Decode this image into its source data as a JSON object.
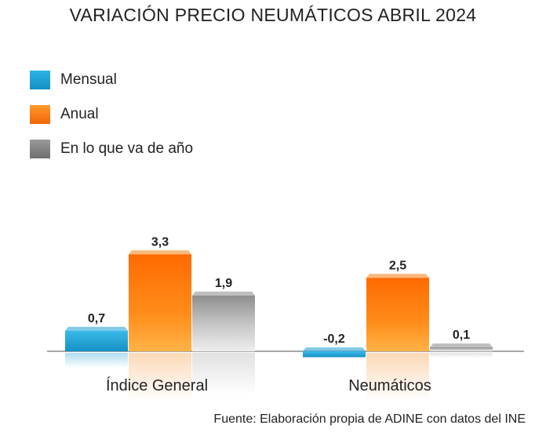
{
  "chart_data": {
    "type": "bar",
    "title": "VARIACIÓN PRECIO NEUMÁTICOS ABRIL 2024",
    "categories": [
      "Índice General",
      "Neumáticos"
    ],
    "series": [
      {
        "name": "Mensual",
        "values": [
          0.7,
          -0.2
        ],
        "labels": [
          "0,7",
          "-0,2"
        ],
        "color": "#1a9fd3"
      },
      {
        "name": "Anual",
        "values": [
          3.3,
          2.5
        ],
        "labels": [
          "3,3",
          "2,5"
        ],
        "color": "#f57f12"
      },
      {
        "name": "En lo que va de año",
        "values": [
          1.9,
          0.1
        ],
        "labels": [
          "1,9",
          "0,1"
        ],
        "color": "#8a8a8a"
      }
    ],
    "legend_position": "top-left",
    "source": "Fuente: Elaboración propia de ADINE con datos del INE"
  }
}
